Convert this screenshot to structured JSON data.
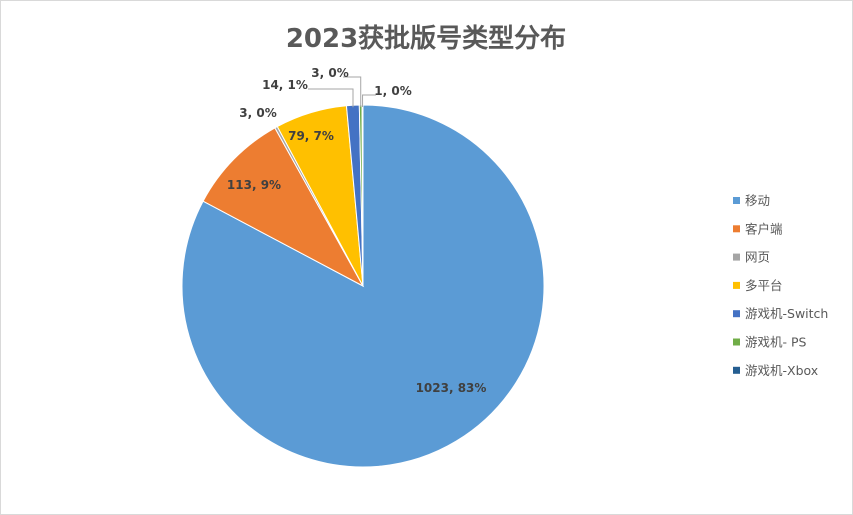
{
  "chart_data": {
    "type": "pie",
    "title": "2023获批版号类型分布",
    "legend_position": "right",
    "series": [
      {
        "slices": [
          {
            "label": "移动",
            "value": 1023,
            "percent_label": "83%",
            "data_label": "1023, 83%",
            "color": "#5B9BD5"
          },
          {
            "label": "客户端",
            "value": 113,
            "percent_label": "9%",
            "data_label": "113, 9%",
            "color": "#ED7D31"
          },
          {
            "label": "网页",
            "value": 3,
            "percent_label": "0%",
            "data_label": "3, 0%",
            "color": "#A5A5A5"
          },
          {
            "label": "多平台",
            "value": 79,
            "percent_label": "7%",
            "data_label": "79, 7%",
            "color": "#FFC000"
          },
          {
            "label": "游戏机-Switch",
            "value": 14,
            "percent_label": "1%",
            "data_label": "14, 1%",
            "color": "#4472C4"
          },
          {
            "label": "游戏机- PS",
            "value": 3,
            "percent_label": "0%",
            "data_label": "3, 0%",
            "color": "#70AD47"
          },
          {
            "label": "游戏机-Xbox",
            "value": 1,
            "percent_label": "0%",
            "data_label": "1, 0%",
            "color": "#255E91"
          }
        ]
      }
    ]
  }
}
